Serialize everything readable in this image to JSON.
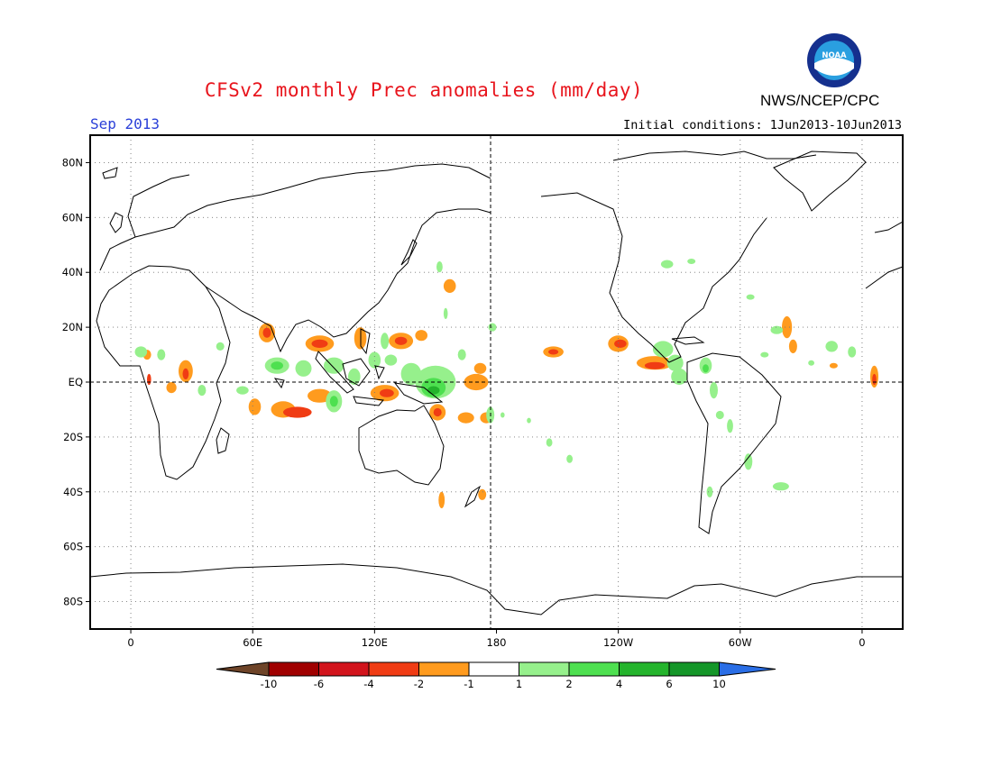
{
  "header": {
    "title": "CFSv2 monthly Prec anomalies (mm/day)",
    "agency": "NWS/NCEP/CPC",
    "logo_text": "NOAA",
    "month": "Sep 2013",
    "initial_conditions": "Initial conditions: 1Jun2013-10Jun2013"
  },
  "map": {
    "lon_range": [
      -20,
      380
    ],
    "lat_range": [
      -90,
      90
    ],
    "lat_ticks": [
      {
        "value": 80,
        "label": "80N"
      },
      {
        "value": 60,
        "label": "60N"
      },
      {
        "value": 40,
        "label": "40N"
      },
      {
        "value": 20,
        "label": "20N"
      },
      {
        "value": 0,
        "label": "EQ"
      },
      {
        "value": -20,
        "label": "20S"
      },
      {
        "value": -40,
        "label": "40S"
      },
      {
        "value": -60,
        "label": "60S"
      },
      {
        "value": -80,
        "label": "80S"
      }
    ],
    "lon_ticks": [
      {
        "value": 0,
        "label": "0"
      },
      {
        "value": 60,
        "label": "60E"
      },
      {
        "value": 120,
        "label": "120E"
      },
      {
        "value": 180,
        "label": "180"
      },
      {
        "value": 240,
        "label": "120W"
      },
      {
        "value": 300,
        "label": "60W"
      },
      {
        "value": 360,
        "label": "0"
      }
    ],
    "anomaly_areas": [
      {
        "lon": 67,
        "lat": 18,
        "rx": 4,
        "ry": 3.5,
        "cat": "neg2"
      },
      {
        "lon": 67,
        "lat": 18,
        "rx": 2,
        "ry": 1.8,
        "cat": "neg4"
      },
      {
        "lon": 93,
        "lat": 14,
        "rx": 7,
        "ry": 3,
        "cat": "neg2"
      },
      {
        "lon": 93,
        "lat": 14,
        "rx": 4,
        "ry": 1.5,
        "cat": "neg4"
      },
      {
        "lon": 113,
        "lat": 16,
        "rx": 3,
        "ry": 4,
        "cat": "neg2"
      },
      {
        "lon": 133,
        "lat": 15,
        "rx": 6,
        "ry": 3,
        "cat": "neg2"
      },
      {
        "lon": 133,
        "lat": 15,
        "rx": 3,
        "ry": 1.5,
        "cat": "neg4"
      },
      {
        "lon": 143,
        "lat": 17,
        "rx": 3,
        "ry": 2,
        "cat": "neg2"
      },
      {
        "lon": 170,
        "lat": 0,
        "rx": 6,
        "ry": 3,
        "cat": "neg2"
      },
      {
        "lon": 172,
        "lat": 5,
        "rx": 3,
        "ry": 2,
        "cat": "neg2"
      },
      {
        "lon": 157,
        "lat": 35,
        "rx": 3,
        "ry": 2.5,
        "cat": "neg2"
      },
      {
        "lon": 61,
        "lat": -9,
        "rx": 3,
        "ry": 3,
        "cat": "neg2"
      },
      {
        "lon": 75,
        "lat": -10,
        "rx": 6,
        "ry": 3,
        "cat": "neg2"
      },
      {
        "lon": 82,
        "lat": -11,
        "rx": 7,
        "ry": 2,
        "cat": "neg4"
      },
      {
        "lon": 93,
        "lat": -5,
        "rx": 6,
        "ry": 2.5,
        "cat": "neg2"
      },
      {
        "lon": 125,
        "lat": -4,
        "rx": 7,
        "ry": 3,
        "cat": "neg2"
      },
      {
        "lon": 126,
        "lat": -4,
        "rx": 3.5,
        "ry": 1.5,
        "cat": "neg4"
      },
      {
        "lon": 151,
        "lat": -11,
        "rx": 4,
        "ry": 3,
        "cat": "neg2"
      },
      {
        "lon": 151,
        "lat": -11,
        "rx": 2,
        "ry": 1.5,
        "cat": "neg4"
      },
      {
        "lon": 165,
        "lat": -13,
        "rx": 4,
        "ry": 2,
        "cat": "neg2"
      },
      {
        "lon": 175,
        "lat": -13,
        "rx": 3,
        "ry": 2,
        "cat": "neg2"
      },
      {
        "lon": 153,
        "lat": -43,
        "rx": 1.5,
        "ry": 3,
        "cat": "neg2"
      },
      {
        "lon": 173,
        "lat": -41,
        "rx": 2,
        "ry": 2,
        "cat": "neg2"
      },
      {
        "lon": 27,
        "lat": 4,
        "rx": 3.5,
        "ry": 4,
        "cat": "neg2"
      },
      {
        "lon": 27,
        "lat": 3,
        "rx": 1.5,
        "ry": 2,
        "cat": "neg4"
      },
      {
        "lon": 20,
        "lat": -2,
        "rx": 2.5,
        "ry": 2,
        "cat": "neg2"
      },
      {
        "lon": 8,
        "lat": 10,
        "rx": 2,
        "ry": 1.8,
        "cat": "neg2"
      },
      {
        "lon": 9,
        "lat": 1,
        "rx": 1,
        "ry": 2,
        "cat": "neg4"
      },
      {
        "lon": 208,
        "lat": 11,
        "rx": 5,
        "ry": 2,
        "cat": "neg2"
      },
      {
        "lon": 208,
        "lat": 11,
        "rx": 2.5,
        "ry": 1,
        "cat": "neg4"
      },
      {
        "lon": 240,
        "lat": 14,
        "rx": 5,
        "ry": 3,
        "cat": "neg2"
      },
      {
        "lon": 241,
        "lat": 14,
        "rx": 3,
        "ry": 1.5,
        "cat": "neg4"
      },
      {
        "lon": 258,
        "lat": 7,
        "rx": 9,
        "ry": 2.5,
        "cat": "neg2"
      },
      {
        "lon": 258,
        "lat": 6,
        "rx": 5,
        "ry": 1.3,
        "cat": "neg4"
      },
      {
        "lon": 323,
        "lat": 20,
        "rx": 2.5,
        "ry": 4,
        "cat": "neg2"
      },
      {
        "lon": 326,
        "lat": 13,
        "rx": 2,
        "ry": 2.5,
        "cat": "neg2"
      },
      {
        "lon": 346,
        "lat": 6,
        "rx": 2,
        "ry": 1,
        "cat": "neg2"
      },
      {
        "lon": 366,
        "lat": 2,
        "rx": 2,
        "ry": 4,
        "cat": "neg2"
      },
      {
        "lon": 366,
        "lat": 1,
        "rx": 1,
        "ry": 2,
        "cat": "neg4"
      },
      {
        "lon": 5,
        "lat": 11,
        "rx": 3,
        "ry": 2,
        "cat": "pos2"
      },
      {
        "lon": 15,
        "lat": 10,
        "rx": 2,
        "ry": 2,
        "cat": "pos1"
      },
      {
        "lon": 35,
        "lat": -3,
        "rx": 2,
        "ry": 2,
        "cat": "pos1"
      },
      {
        "lon": 44,
        "lat": 13,
        "rx": 2,
        "ry": 1.5,
        "cat": "pos1"
      },
      {
        "lon": 55,
        "lat": -3,
        "rx": 3,
        "ry": 1.5,
        "cat": "pos2"
      },
      {
        "lon": 72,
        "lat": 6,
        "rx": 6,
        "ry": 3,
        "cat": "pos2"
      },
      {
        "lon": 72,
        "lat": 6,
        "rx": 3,
        "ry": 1.5,
        "cat": "pos4"
      },
      {
        "lon": 85,
        "lat": 5,
        "rx": 4,
        "ry": 3,
        "cat": "pos2"
      },
      {
        "lon": 100,
        "lat": 6,
        "rx": 5,
        "ry": 3,
        "cat": "pos2"
      },
      {
        "lon": 100,
        "lat": -7,
        "rx": 4,
        "ry": 4,
        "cat": "pos2"
      },
      {
        "lon": 100,
        "lat": -7,
        "rx": 2,
        "ry": 2,
        "cat": "pos4"
      },
      {
        "lon": 110,
        "lat": 2,
        "rx": 3,
        "ry": 3,
        "cat": "pos2"
      },
      {
        "lon": 120,
        "lat": 8,
        "rx": 3,
        "ry": 3,
        "cat": "pos2"
      },
      {
        "lon": 125,
        "lat": 15,
        "rx": 2,
        "ry": 3,
        "cat": "pos2"
      },
      {
        "lon": 128,
        "lat": 8,
        "rx": 3,
        "ry": 2,
        "cat": "pos2"
      },
      {
        "lon": 138,
        "lat": 3,
        "rx": 5,
        "ry": 4,
        "cat": "pos2"
      },
      {
        "lon": 150,
        "lat": 0,
        "rx": 10,
        "ry": 6,
        "cat": "pos2"
      },
      {
        "lon": 149,
        "lat": -2,
        "rx": 6,
        "ry": 3.5,
        "cat": "pos4"
      },
      {
        "lon": 149,
        "lat": -3,
        "rx": 3,
        "ry": 1.5,
        "cat": "pos6"
      },
      {
        "lon": 163,
        "lat": 10,
        "rx": 2,
        "ry": 2,
        "cat": "pos2"
      },
      {
        "lon": 177,
        "lat": -12,
        "rx": 2,
        "ry": 3,
        "cat": "pos2"
      },
      {
        "lon": 152,
        "lat": 42,
        "rx": 1.5,
        "ry": 2,
        "cat": "pos2"
      },
      {
        "lon": 178,
        "lat": 20,
        "rx": 2,
        "ry": 1.5,
        "cat": "pos2"
      },
      {
        "lon": 155,
        "lat": 25,
        "rx": 1,
        "ry": 2,
        "cat": "pos1"
      },
      {
        "lon": 183,
        "lat": -12,
        "rx": 1,
        "ry": 1,
        "cat": "pos2"
      },
      {
        "lon": 196,
        "lat": -14,
        "rx": 1,
        "ry": 1,
        "cat": "pos2"
      },
      {
        "lon": 206,
        "lat": -22,
        "rx": 1.5,
        "ry": 1.5,
        "cat": "pos2"
      },
      {
        "lon": 216,
        "lat": -28,
        "rx": 1.5,
        "ry": 1.5,
        "cat": "pos2"
      },
      {
        "lon": 262,
        "lat": 12,
        "rx": 5,
        "ry": 3,
        "cat": "pos2"
      },
      {
        "lon": 268,
        "lat": 7,
        "rx": 4,
        "ry": 3,
        "cat": "pos2"
      },
      {
        "lon": 270,
        "lat": 2,
        "rx": 4,
        "ry": 3,
        "cat": "pos2"
      },
      {
        "lon": 283,
        "lat": 6,
        "rx": 3,
        "ry": 3,
        "cat": "pos2"
      },
      {
        "lon": 283,
        "lat": 5,
        "rx": 1.5,
        "ry": 1.5,
        "cat": "pos4"
      },
      {
        "lon": 287,
        "lat": -3,
        "rx": 2,
        "ry": 3,
        "cat": "pos2"
      },
      {
        "lon": 290,
        "lat": -12,
        "rx": 2,
        "ry": 1.5,
        "cat": "pos1"
      },
      {
        "lon": 295,
        "lat": -16,
        "rx": 1.5,
        "ry": 2.5,
        "cat": "pos2"
      },
      {
        "lon": 304,
        "lat": -29,
        "rx": 2,
        "ry": 3,
        "cat": "pos2"
      },
      {
        "lon": 320,
        "lat": -38,
        "rx": 4,
        "ry": 1.5,
        "cat": "pos2"
      },
      {
        "lon": 285,
        "lat": -40,
        "rx": 1.5,
        "ry": 2,
        "cat": "pos2"
      },
      {
        "lon": 264,
        "lat": 43,
        "rx": 3,
        "ry": 1.5,
        "cat": "pos2"
      },
      {
        "lon": 276,
        "lat": 44,
        "rx": 2,
        "ry": 1,
        "cat": "pos2"
      },
      {
        "lon": 305,
        "lat": 31,
        "rx": 2,
        "ry": 1,
        "cat": "pos2"
      },
      {
        "lon": 312,
        "lat": 10,
        "rx": 2,
        "ry": 1,
        "cat": "pos2"
      },
      {
        "lon": 318,
        "lat": 19,
        "rx": 3,
        "ry": 1.5,
        "cat": "pos2"
      },
      {
        "lon": 345,
        "lat": 13,
        "rx": 3,
        "ry": 2,
        "cat": "pos2"
      },
      {
        "lon": 355,
        "lat": 11,
        "rx": 2,
        "ry": 2,
        "cat": "pos2"
      },
      {
        "lon": 335,
        "lat": 7,
        "rx": 1.5,
        "ry": 1,
        "cat": "pos2"
      }
    ]
  },
  "colorbar": {
    "labels": [
      "-10",
      "-6",
      "-4",
      "-2",
      "-1",
      "1",
      "2",
      "4",
      "6",
      "10"
    ],
    "colors": [
      "#a00000",
      "#d2141c",
      "#f03c14",
      "#ff9b1e",
      "#ffffff",
      "#96f08c",
      "#4ee050",
      "#24b42c",
      "#149628"
    ],
    "under_color": "#6e4428",
    "over_color": "#2a6ee6"
  },
  "anomaly_colors": {
    "neg2": "#ff9b1e",
    "neg4": "#f03c14",
    "pos1": "#96f08c",
    "pos2": "#96f08c",
    "pos4": "#4ee050",
    "pos6": "#24b42c"
  },
  "logo_colors": {
    "ring": "#15308e",
    "sky": "#2a9fe0",
    "gull": "#ffffff",
    "water": "#1c8ed8"
  }
}
